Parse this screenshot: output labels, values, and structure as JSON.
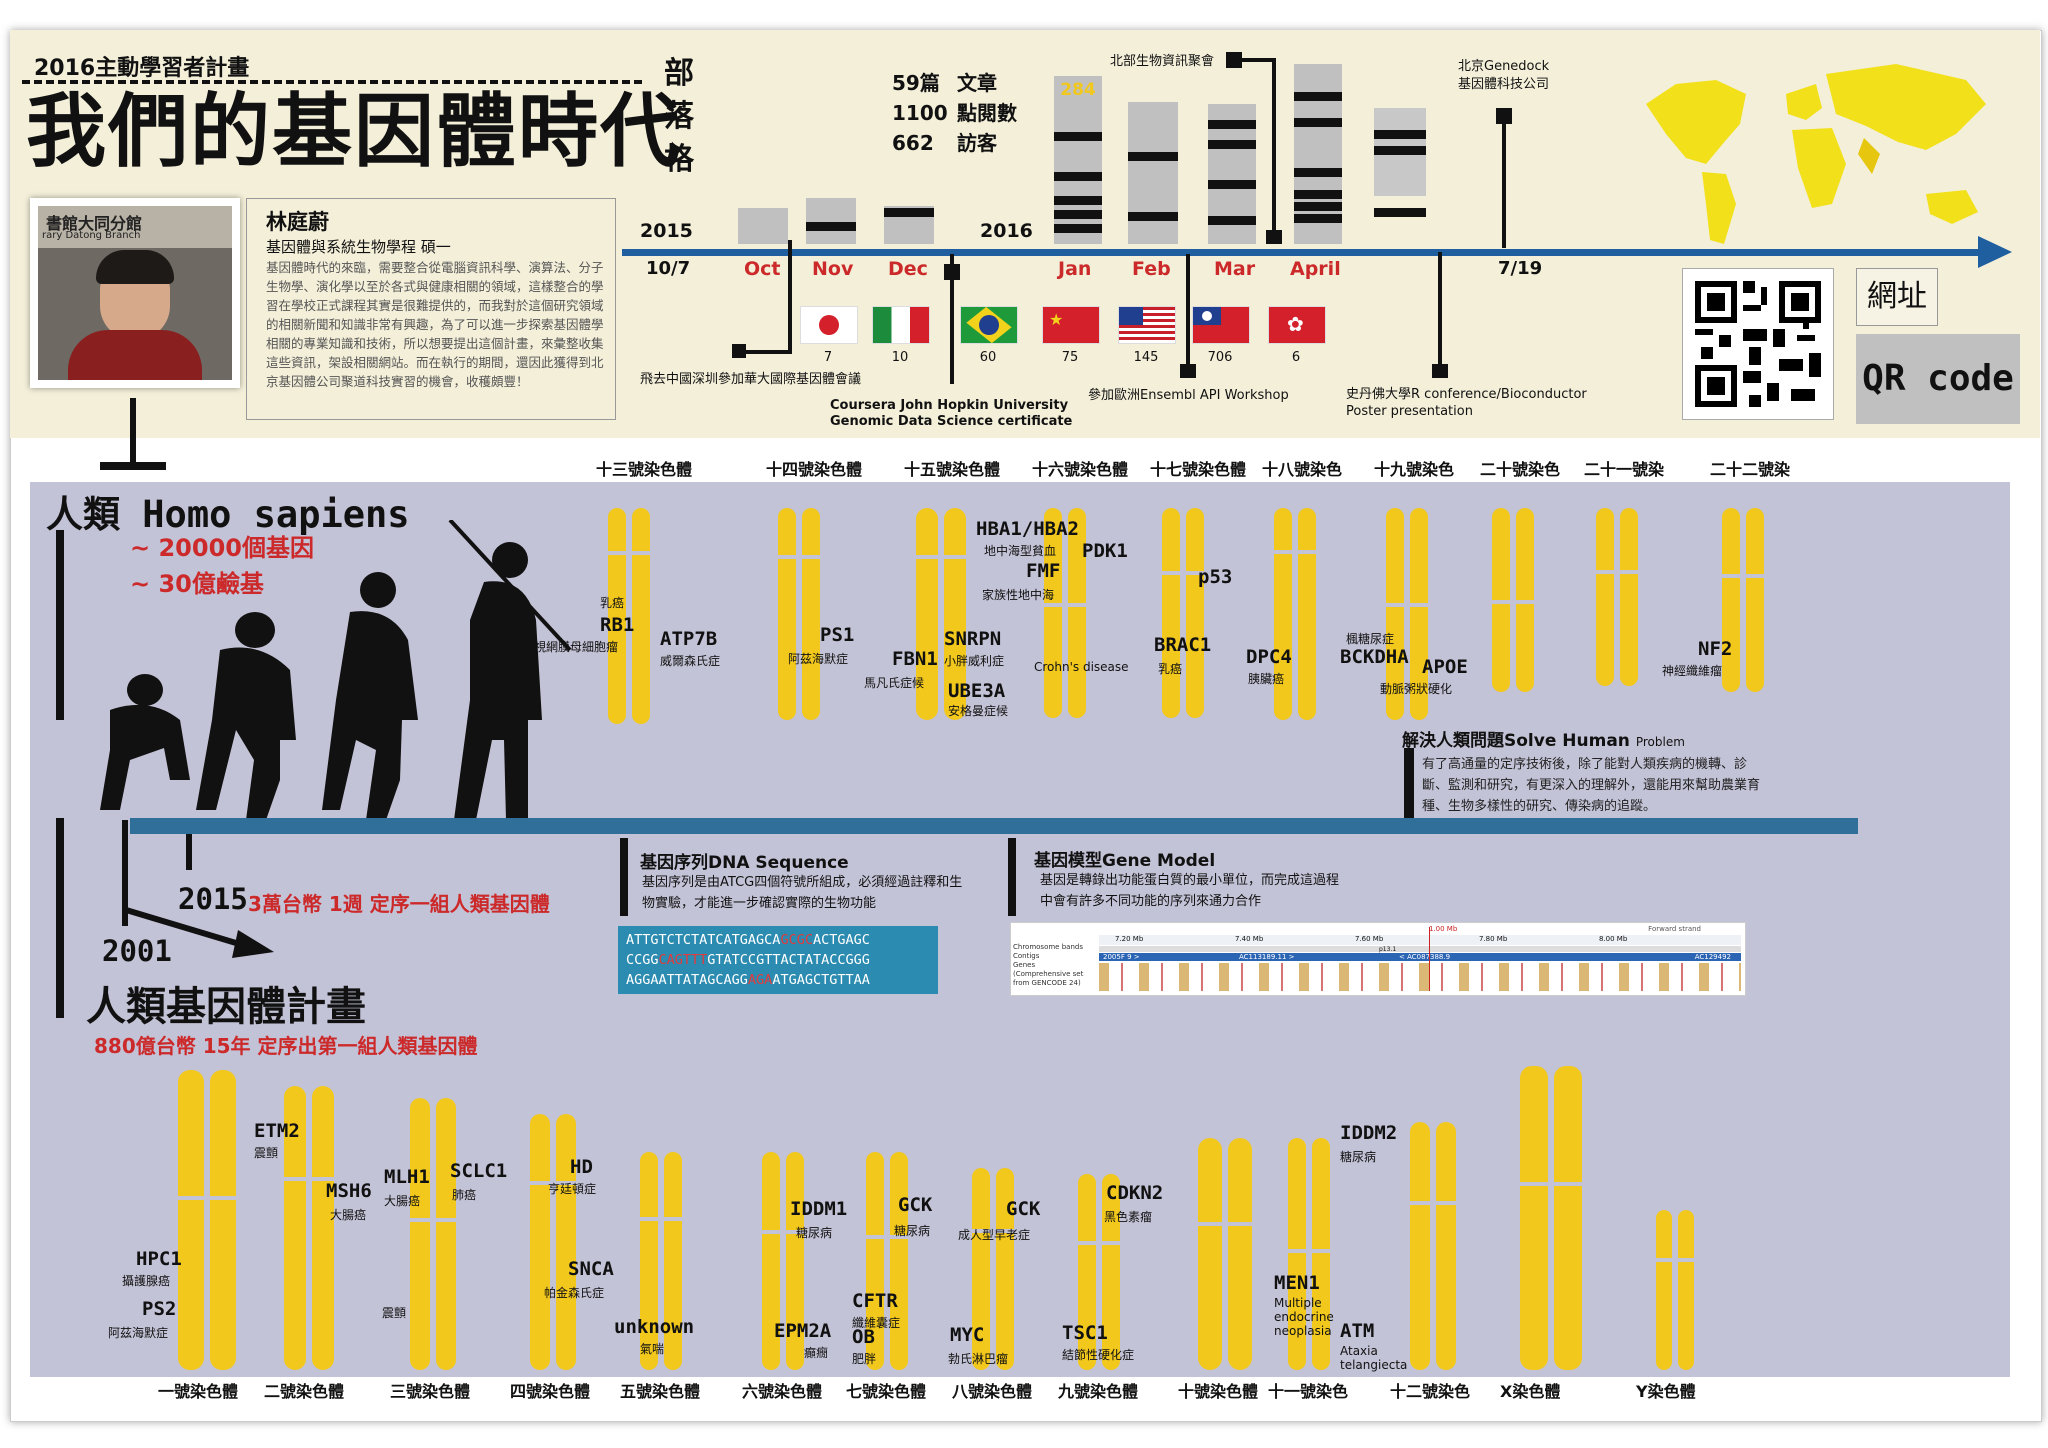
{
  "project": "2016主動學習者計畫",
  "title": "我們的基因體時代",
  "blog_chars": [
    "部",
    "落",
    "格"
  ],
  "blog_stats": [
    {
      "value": "59篇",
      "label": "文章"
    },
    {
      "value": "1100",
      "label": "點閱數"
    },
    {
      "value": "662",
      "label": "訪客"
    }
  ],
  "profile": {
    "name": "林庭蔚",
    "program": "基因體與系統生物學程 碩一",
    "bio": "基因體時代的來臨，需要整合從電腦資訊科學、演算法、分子生物學、演化學以至於各式與健康相關的領域，這樣整合的學習在學校正式課程其實是很難提供的，而我對於這個研究領域的相關新聞和知識非常有興趣，為了可以進一步探索基因體學相關的專業知識和技術，所以想要提出這個計畫，來彙整收集這些資訊，架設相關網站。而在執行的期間，還因此獲得到北京基因體公司聚道科技實習的機會，收穫頗豐！",
    "photo_sign": "書館大同分館",
    "photo_sign2": "rary Datong Branch"
  },
  "timeline": {
    "year1": "2015",
    "date1": "10/7",
    "year2": "2016",
    "date_end": "7/19",
    "months": [
      "Oct",
      "Nov",
      "Dec",
      "Jan",
      "Feb",
      "Mar",
      "April"
    ],
    "highlight": "284",
    "events": {
      "shenzhen": "飛去中國深圳參加華大國際基因體會議",
      "coursera1": "Coursera John Hopkin University",
      "coursera2": "Genomic Data Science certificate",
      "north_camp": "北部生物資訊聚會",
      "ensembl": "參加歐洲Ensembl API Workshop",
      "genedock1": "北京Genedock",
      "genedock2": "基因體科技公司",
      "stanford1": "史丹佛大學R conference/Bioconductor",
      "stanford2": "Poster presentation"
    },
    "flags": [
      {
        "country": "japan",
        "count": "7"
      },
      {
        "country": "italy",
        "count": "10"
      },
      {
        "country": "brazil",
        "count": "60"
      },
      {
        "country": "china",
        "count": "75"
      },
      {
        "country": "usa",
        "count": "145"
      },
      {
        "country": "taiwan",
        "count": "706"
      },
      {
        "country": "hongkong",
        "count": "6"
      }
    ]
  },
  "qr": {
    "site_label": "網址",
    "qr_label": "QR code"
  },
  "human": {
    "title": "人類 Homo sapiens",
    "genes": "~ 20000個基因",
    "bases": "~ 30億鹼基",
    "year2015": "2015",
    "note2015": "3萬台幣 1週  定序一組人類基因體",
    "year2001": "2001",
    "hgp": "人類基因體計畫",
    "note2001": "880億台幣 15年  定序出第一組人類基因體"
  },
  "solve": {
    "title": "解決人類問題Solve Human",
    "title_small": "Problem",
    "body": "有了高通量的定序技術後，除了能對人類疾病的機轉、診斷、監測和研究，有更深入的理解外，還能用來幫助農業育種、生物多樣性的研究、傳染病的追蹤。"
  },
  "dna": {
    "title": "基因序列DNA Sequence",
    "body": "基因序列是由ATCG四個符號所組成，必須經過註釋和生物實驗，才能進一步確認實際的生物功能",
    "seq": [
      [
        [
          "ATTGTCTCTATCATGAGCA",
          false
        ],
        [
          "GCGC",
          true
        ],
        [
          "ACTGAGC",
          false
        ]
      ],
      [
        [
          "CCGG",
          false
        ],
        [
          "CAGTTT",
          true
        ],
        [
          "GTATCCGTTACTATACCGGG",
          false
        ]
      ],
      [
        [
          "AGGAATTATAGCAGG",
          false
        ],
        [
          "AGA",
          true
        ],
        [
          "ATGAGCTGTTAA",
          false
        ]
      ]
    ]
  },
  "gene_model": {
    "title": "基因模型Gene Model",
    "body": "基因是轉錄出功能蛋白質的最小單位，而完成這過程中會有許多不同功能的序列來通力合作",
    "browser_labels": [
      "Chromosome bands",
      "Contigs",
      "Genes",
      "(Comprehensive set",
      "from GENCODE 24)"
    ],
    "ticks": [
      "7.20 Mb",
      "7.40 Mb",
      "7.60 Mb",
      "7.80 Mb",
      "8.00 Mb"
    ],
    "band": "p13.1",
    "top_tick": "1.00 Mb",
    "strand": "Forward strand",
    "contigs": [
      "2005F 9 >",
      "AC113189.11 >",
      "< AC087388.9",
      "AC129492"
    ]
  },
  "top_chromosomes": [
    "十三號染色體",
    "十四號染色體",
    "十五號染色體",
    "十六號染色體",
    "十七號染色體",
    "十八號染色",
    "十九號染色",
    "二十號染色",
    "二十一號染",
    "二十二號染"
  ],
  "bottom_chromosomes": [
    "一號染色體",
    "二號染色體",
    "三號染色體",
    "四號染色體",
    "五號染色體",
    "六號染色體",
    "七號染色體",
    "八號染色體",
    "九號染色體",
    "十號染色體",
    "十一號染色",
    "十二號染色",
    "X染色體",
    "Y染色體"
  ],
  "top_genes": [
    {
      "gene": "RB1",
      "disease": "視網膜母細胞瘤",
      "pre": "乳癌"
    },
    {
      "gene": "ATP7B",
      "disease": "威爾森氏症"
    },
    {
      "gene": "PS1",
      "disease": "阿茲海默症"
    },
    {
      "gene": "FBN1",
      "disease": "馬凡氏症候"
    },
    {
      "gene": "HBA1/HBA2",
      "disease": "地中海型貧血"
    },
    {
      "gene": "FMF",
      "disease": "家族性地中海"
    },
    {
      "gene": "SNRPN",
      "disease": "小胖威利症"
    },
    {
      "gene": "UBE3A",
      "disease": "安格曼症候"
    },
    {
      "gene": "PDK1",
      "disease": ""
    },
    {
      "gene": "",
      "disease": "Crohn's disease"
    },
    {
      "gene": "p53",
      "disease": ""
    },
    {
      "gene": "BRAC1",
      "disease": "乳癌"
    },
    {
      "gene": "DPC4",
      "disease": "胰臟癌"
    },
    {
      "gene": "BCKDHA",
      "disease": "楓糖尿症"
    },
    {
      "gene": "APOE",
      "disease": "動脈粥狀硬化"
    },
    {
      "gene": "NF2",
      "disease": "神經纖維瘤"
    }
  ],
  "bottom_genes": [
    {
      "gene": "ETM2",
      "disease": "震顫"
    },
    {
      "gene": "HPC1",
      "disease": "攝護腺癌"
    },
    {
      "gene": "PS2",
      "disease": "阿茲海默症"
    },
    {
      "gene": "MSH6",
      "disease": "大腸癌"
    },
    {
      "gene": "MLH1",
      "disease": "大腸癌"
    },
    {
      "gene": "SCLC1",
      "disease": "肺癌"
    },
    {
      "gene": "",
      "disease": "震顫"
    },
    {
      "gene": "HD",
      "disease": "亨廷頓症"
    },
    {
      "gene": "SNCA",
      "disease": "帕金森氏症"
    },
    {
      "gene": "unknown",
      "disease": "氣喘"
    },
    {
      "gene": "IDDM1",
      "disease": "糖尿病"
    },
    {
      "gene": "EPM2A",
      "disease": "癲癇"
    },
    {
      "gene": "GCK",
      "disease": "糖尿病"
    },
    {
      "gene": "CFTR",
      "disease": "纖維囊症"
    },
    {
      "gene": "OB",
      "disease": "肥胖"
    },
    {
      "gene": "GCK",
      "disease": "成人型早老症"
    },
    {
      "gene": "MYC",
      "disease": "勃氏淋巴瘤"
    },
    {
      "gene": "CDKN2",
      "disease": "黑色素瘤"
    },
    {
      "gene": "TSC1",
      "disease": "結節性硬化症"
    },
    {
      "gene": "IDDM2",
      "disease": "糖尿病"
    },
    {
      "gene": "MEN1",
      "disease": "Multiple endocrine neoplasia"
    },
    {
      "gene": "ATM",
      "disease": "Ataxia telangiecta"
    }
  ],
  "colors": {
    "chromosome": "#f2c81c",
    "timeline": "#1f5f9f",
    "accent_red": "#cc2a2a",
    "bg_lower": "#c3c3d7",
    "bg_header": "#f3efd9",
    "dna_box": "#2b8bb0"
  }
}
